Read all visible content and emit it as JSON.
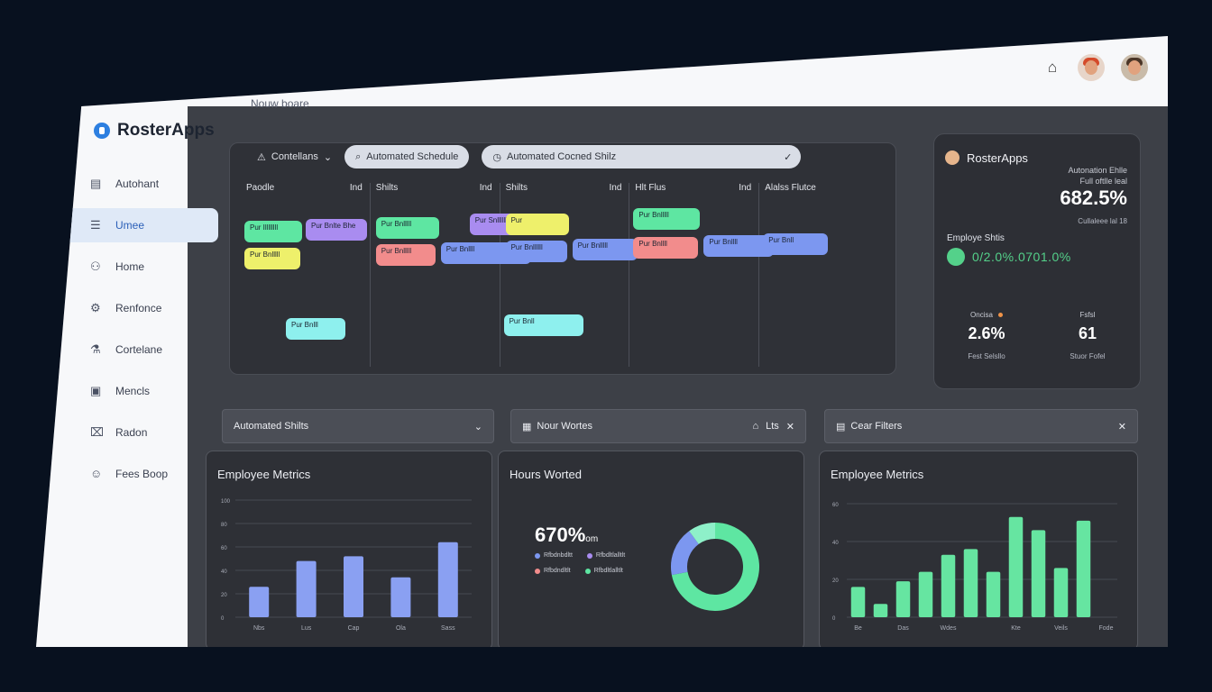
{
  "app": {
    "brand": "RosterApps",
    "breadcrumb": "Nouw boare"
  },
  "sidebar": {
    "items": [
      {
        "label": "Autohant",
        "icon": "document-icon"
      },
      {
        "label": "Umee",
        "icon": "list-icon",
        "active": true
      },
      {
        "label": "Home",
        "icon": "user-icon"
      },
      {
        "label": "Renfonce",
        "icon": "gear-icon"
      },
      {
        "label": "Cortelane",
        "icon": "flask-icon"
      },
      {
        "label": "Mencls",
        "icon": "clipboard-icon"
      },
      {
        "label": "Radon",
        "icon": "lock-icon"
      },
      {
        "label": "Fees Boop",
        "icon": "person-icon"
      }
    ]
  },
  "schedule": {
    "dropdown_label": "Contellans",
    "search1": "Automated Schedule",
    "search2": "Automated Cocned Shilz",
    "columns": [
      {
        "head": "Paodle",
        "right": "Ind"
      },
      {
        "head": "Shilts",
        "right": "Ind"
      },
      {
        "head": "Shilts",
        "right": "Ind"
      },
      {
        "head": "Hlt Flus",
        "right": "Ind"
      },
      {
        "head": "Alalss Flutce",
        "right": ""
      }
    ],
    "chips": [
      {
        "text": "Pur Illllllll",
        "color": "green"
      },
      {
        "text": "Pur Bnlte Bhe",
        "color": "purple"
      },
      {
        "text": "Pur Bnlllll",
        "color": "yellow"
      },
      {
        "text": "Pur Bnlll",
        "color": "cyan"
      },
      {
        "text": "Pur Bnlllll",
        "color": "green"
      },
      {
        "text": "Pur Snllllll",
        "color": "purple"
      },
      {
        "text": "Pur Bnlllll",
        "color": "pink"
      },
      {
        "text": "Pur Bnllll",
        "color": "blue"
      },
      {
        "text": "Pur",
        "color": "yellow"
      },
      {
        "text": "Pur Bnllllll",
        "color": "blue"
      },
      {
        "text": "Pur Bnlllll",
        "color": "blue"
      },
      {
        "text": "Pur Bnll",
        "color": "cyan"
      },
      {
        "text": "Pur Bnlllll",
        "color": "green"
      },
      {
        "text": "Pur Bnllll",
        "color": "pink"
      },
      {
        "text": "Pur Bnllll",
        "color": "blue"
      },
      {
        "text": "Pur Bnll",
        "color": "blue"
      }
    ]
  },
  "stats": {
    "brand": "RosterApps",
    "label_top": "Autonation Ehlle",
    "label_top2": "Full oftlle leal",
    "big": "682.5%",
    "sub": "Cullaleee lal 18",
    "metric_title": "Employe Shtis",
    "trend_text": "0/2.0%.0701.0%",
    "kpi": [
      {
        "label": "Oncisa",
        "value": "2.6%",
        "foot": "Fest Selsllo"
      },
      {
        "label": "Fsfsl",
        "value": "61",
        "foot": "Stuor Fofel"
      }
    ]
  },
  "filters": {
    "f1": "Automated Shilts",
    "f2": "Nour Wortes",
    "f2_right": "Lts",
    "f3": "Cear Filters"
  },
  "cards": {
    "c1": {
      "title": "Employee Metrics",
      "yticks": [
        "0",
        "20",
        "40",
        "60",
        "80",
        "100"
      ],
      "xticks": [
        "Nbs",
        "Lus",
        "Cap",
        "Ola",
        "Sass"
      ]
    },
    "c2": {
      "title": "Hours Worted",
      "value": "670%",
      "unit": "om",
      "legend": [
        "Rfbdnbdltt",
        "Rfbdltlalltlt",
        "Rfbdndltlt",
        "Rfbdltlalltlt"
      ]
    },
    "c3": {
      "title": "Employee Metrics",
      "yticks": [
        "0",
        "20",
        "40",
        "60"
      ],
      "xticks": [
        "Be",
        "Das",
        "Wdes",
        "Kte",
        "Veils",
        "Fode"
      ]
    }
  },
  "chart_data": [
    {
      "type": "bar",
      "title": "Employee Metrics",
      "categories": [
        "Nbs",
        "Lus",
        "Cap",
        "Ola",
        "Sass"
      ],
      "values": [
        26,
        48,
        52,
        34,
        64
      ],
      "ylim": [
        0,
        100
      ]
    },
    {
      "type": "pie",
      "title": "Hours Worted",
      "categories": [
        "Rfbdnbdltt",
        "Rfbdltlalltlt",
        "Rfbdndltlt",
        "Rfbdltlalltlt"
      ],
      "values": [
        72,
        18,
        0,
        10
      ]
    },
    {
      "type": "bar",
      "title": "Employee Metrics",
      "categories": [
        "Be",
        "",
        "Das",
        "",
        "Wdes",
        "",
        "",
        "Kte",
        "",
        "Veils",
        "",
        "Fode"
      ],
      "values": [
        16,
        7,
        19,
        24,
        33,
        36,
        24,
        53,
        46,
        26,
        51,
        0
      ],
      "ylim": [
        0,
        60
      ]
    }
  ],
  "colors": {
    "accent_green": "#5ee6a2",
    "accent_blue": "#7c97f0"
  }
}
